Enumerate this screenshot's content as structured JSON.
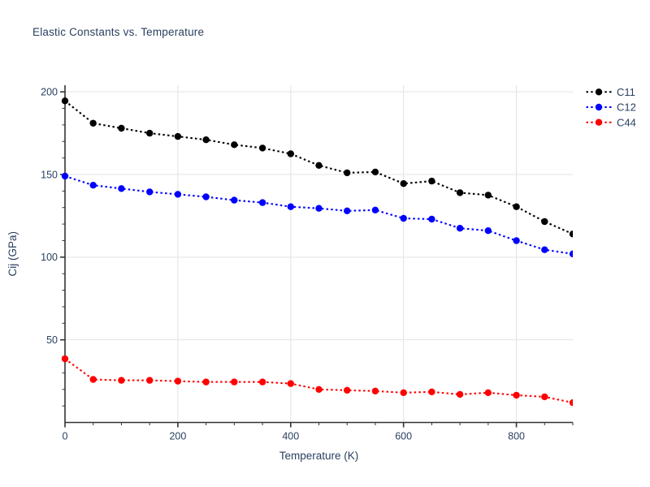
{
  "page": {
    "background": "#ffffff"
  },
  "chart_data": {
    "type": "line",
    "title": "Elastic Constants vs. Temperature",
    "xlabel": "Temperature (K)",
    "ylabel": "Cij (GPa)",
    "x": [
      0,
      50,
      100,
      150,
      200,
      250,
      300,
      350,
      400,
      450,
      500,
      550,
      600,
      650,
      700,
      750,
      800,
      850,
      900
    ],
    "series": [
      {
        "name": "C11",
        "color": "#000000",
        "values": [
          194.5,
          181,
          178,
          175,
          173,
          171,
          168,
          166,
          162.5,
          155.5,
          151,
          151.5,
          144.5,
          146,
          139,
          137.5,
          130.5,
          121.5,
          114
        ]
      },
      {
        "name": "C12",
        "color": "#0000ff",
        "values": [
          149,
          143.5,
          141.5,
          139.5,
          138,
          136.5,
          134.5,
          133,
          130.5,
          129.5,
          128,
          128.5,
          123.5,
          123,
          117.5,
          116,
          110,
          104.5,
          102
        ]
      },
      {
        "name": "C44",
        "color": "#ff0000",
        "values": [
          38.5,
          26,
          25.5,
          25.5,
          25,
          24.5,
          24.5,
          24.5,
          23.5,
          20,
          19.5,
          19,
          18,
          18.5,
          17,
          18,
          16.5,
          15.5,
          12
        ]
      }
    ],
    "xlim": [
      0,
      900
    ],
    "ylim": [
      0,
      204
    ],
    "x_ticks": [
      0,
      200,
      400,
      600,
      800
    ],
    "y_ticks": [
      50,
      100,
      150,
      200
    ],
    "x_minor_step": 50,
    "y_minor_step": 10,
    "grid": true,
    "legend_position": "top-right-outside",
    "line_style": "dotted",
    "marker": "circle",
    "text_color": "#2a3f5f",
    "grid_color": "#e3e3e3",
    "axis_color": "#333333"
  }
}
